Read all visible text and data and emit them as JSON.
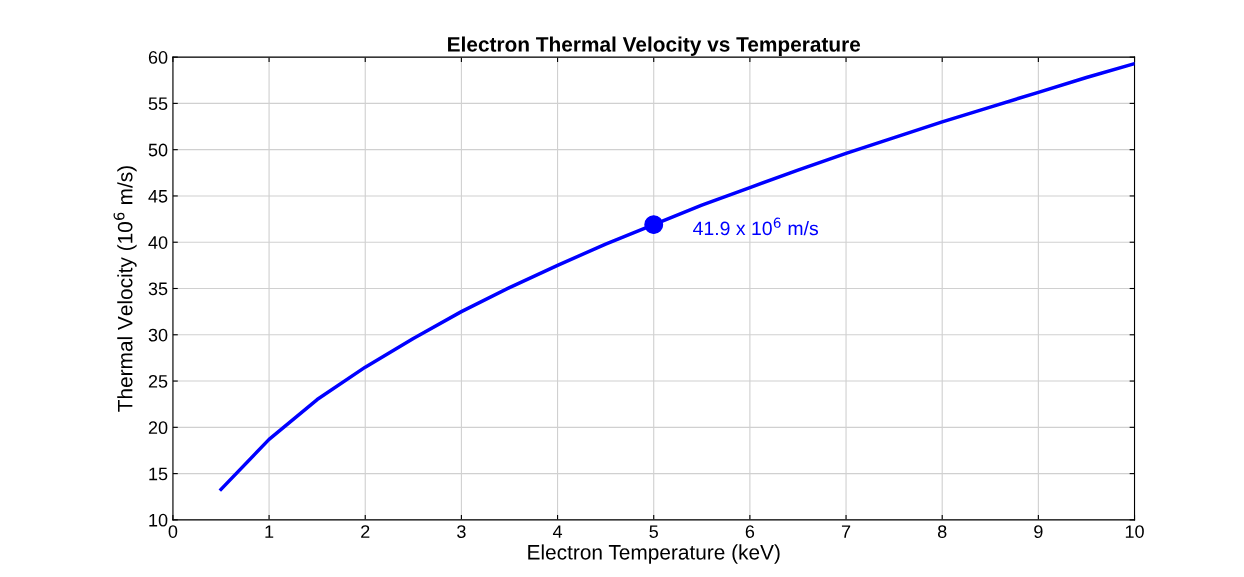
{
  "chart_data": {
    "type": "line",
    "title": "Electron Thermal Velocity vs Temperature",
    "xlabel": "Electron Temperature (keV)",
    "ylabel": "Thermal Velocity (10$^{6}$ m/s)",
    "series": [
      {
        "color": "#0000ff",
        "x": [
          0.5,
          1,
          1.5,
          2,
          2.5,
          3,
          3.5,
          4,
          4.5,
          5,
          5.5,
          6,
          6.5,
          7,
          7.5,
          8,
          8.5,
          9,
          9.5,
          10
        ],
        "values": [
          13.3,
          18.7,
          23.0,
          26.5,
          29.6,
          32.5,
          35.1,
          37.5,
          39.8,
          41.9,
          44.0,
          45.9,
          47.8,
          49.6,
          51.3,
          53.0,
          54.6,
          56.2,
          57.8,
          59.3
        ],
        "marker": "none",
        "line_style": "solid"
      },
      {
        "type": "scatter",
        "color": "#0000ff",
        "x": [
          5
        ],
        "values": [
          41.9
        ],
        "marker": "circle"
      }
    ],
    "annotations": [
      {
        "text": "41.9 x 10$^{6}$ m/s",
        "x": 5,
        "y": 41.9
      }
    ],
    "xlim": [
      0,
      10
    ],
    "xticks": [
      0,
      1,
      2,
      3,
      4,
      5,
      6,
      7,
      8,
      9,
      10
    ],
    "ylim": [
      10,
      60
    ],
    "yticks": [
      10,
      15,
      20,
      25,
      30,
      35,
      40,
      45,
      50,
      55,
      60
    ],
    "grid": true
  }
}
